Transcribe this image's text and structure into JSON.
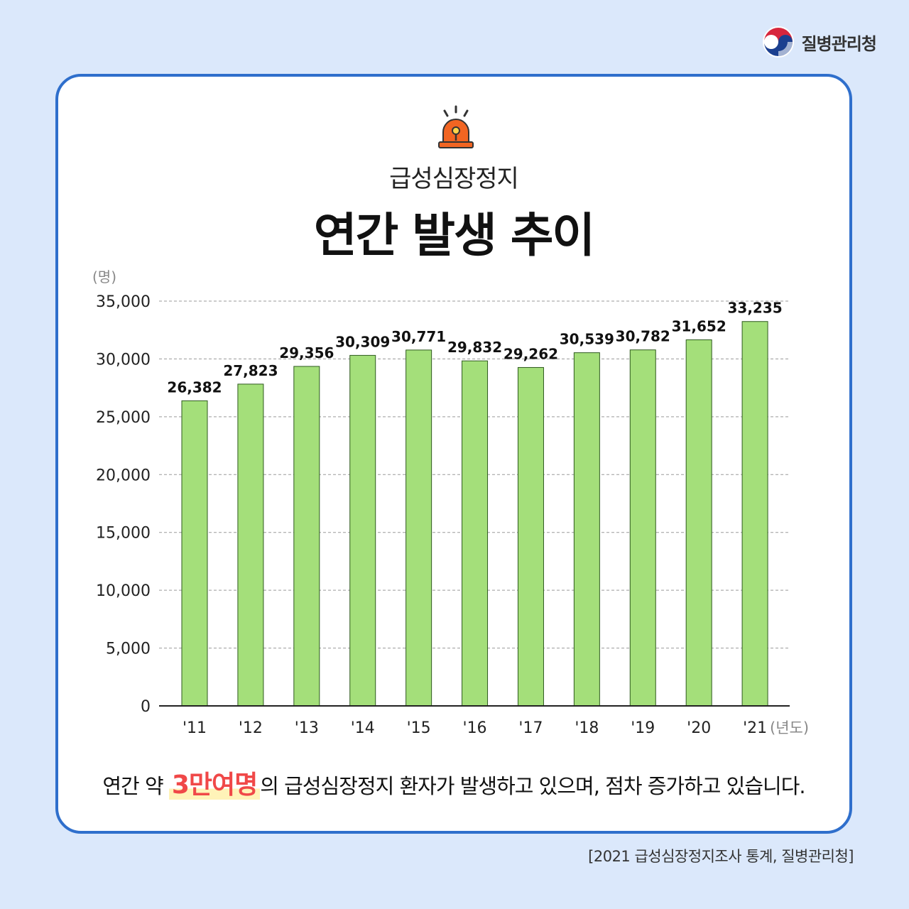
{
  "header": {
    "org_name": "질병관리청",
    "logo_icon": "korea-government-taegeuk-logo"
  },
  "card": {
    "icon": "siren-icon",
    "subtitle": "급성심장정지",
    "title": "연간 발생 추이"
  },
  "summary": {
    "before": "연간 약 ",
    "highlight": "3만여명",
    "after": "의 급성심장정지 환자가 발생하고 있으며, 점차 증가하고 있습니다."
  },
  "source": "[2021 급성심장정지조사 통계, 질병관리청]",
  "colors": {
    "background": "#dbe8fb",
    "card_border": "#2f6fcc",
    "bar_fill": "#a4df7a",
    "bar_stroke": "#2e5a1e",
    "highlight_text": "#f04848",
    "highlight_marker": "#fff3b8",
    "siren": "#f26522"
  },
  "chart_data": {
    "type": "bar",
    "categories": [
      "'11",
      "'12",
      "'13",
      "'14",
      "'15",
      "'16",
      "'17",
      "'18",
      "'19",
      "'20",
      "'21"
    ],
    "values": [
      26382,
      27823,
      29356,
      30309,
      30771,
      29832,
      29262,
      30539,
      30782,
      31652,
      33235
    ],
    "value_labels": [
      "26,382",
      "27,823",
      "29,356",
      "30,309",
      "30,771",
      "29,832",
      "29,262",
      "30,539",
      "30,782",
      "31,652",
      "33,235"
    ],
    "y_ticks": [
      "0",
      "5,000",
      "10,000",
      "15,000",
      "20,000",
      "25,000",
      "30,000",
      "35,000"
    ],
    "ylim": [
      0,
      35000
    ],
    "ylabel": "(명)",
    "xlabel": "(년도)",
    "grid": true
  }
}
